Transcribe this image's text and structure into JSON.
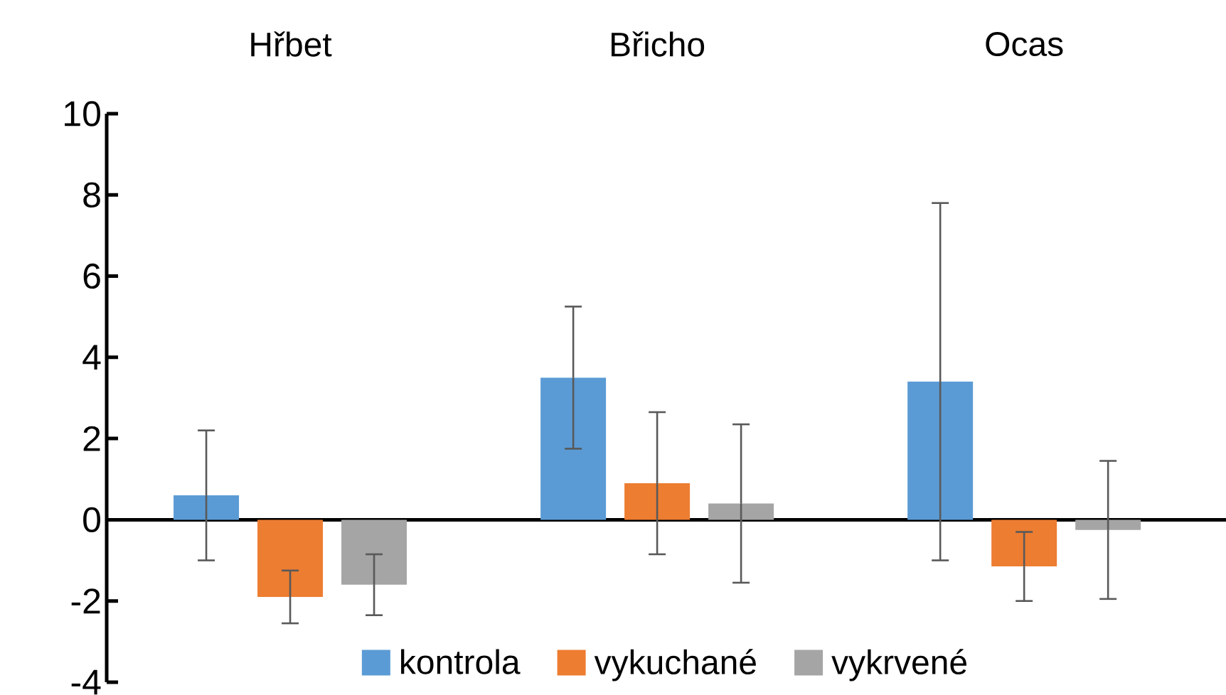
{
  "chart_data": {
    "type": "bar",
    "categories": [
      "Hřbet",
      "Břicho",
      "Ocas"
    ],
    "series": [
      {
        "name": "kontrola",
        "color": "#5b9bd5",
        "values": [
          0.6,
          3.5,
          3.4
        ],
        "errors": [
          1.6,
          1.75,
          4.4
        ]
      },
      {
        "name": "vykuchané",
        "color": "#ed7d31",
        "values": [
          -1.9,
          0.9,
          -1.15
        ],
        "errors": [
          0.65,
          1.75,
          0.85
        ]
      },
      {
        "name": "vykrvené",
        "color": "#a5a5a5",
        "values": [
          -1.6,
          0.4,
          -0.25
        ],
        "errors": [
          0.75,
          1.95,
          1.7
        ]
      }
    ],
    "ylim": [
      -4,
      10
    ],
    "yticks": [
      -4,
      -2,
      0,
      2,
      4,
      6,
      8,
      10
    ],
    "legend": "bottom"
  }
}
